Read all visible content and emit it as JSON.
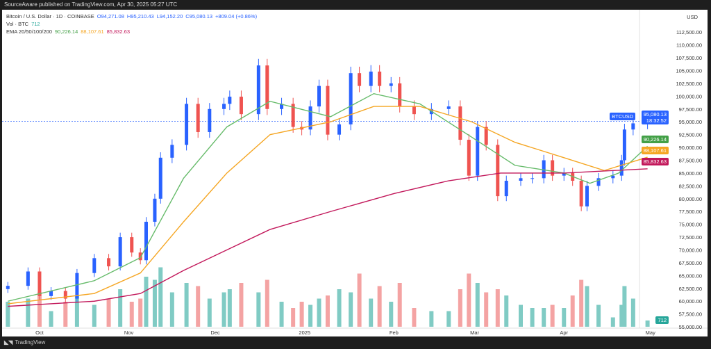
{
  "top_note": "SourceAware published on TradingView.com, Apr 30, 2025 05:27 UTC",
  "footer_brand": "TradingView",
  "legend": {
    "symbol": "Bitcoin / U.S. Dollar · 1D · COINBASE",
    "open": "O94,271.08",
    "high": "H95,210.43",
    "low": "L94,152.20",
    "close": "C95,080.13",
    "change": "+809.04 (+0.86%)",
    "vol_label": "Vol · BTC",
    "vol_value": "712",
    "ema_label": "EMA 20/50/100/200",
    "ema20": "90,226.14",
    "ema50": "88,107.61",
    "ema200": "85,832.63"
  },
  "axis": {
    "currency": "USD",
    "symbol_tag": "BTCUSD",
    "price_tag": "95,080.13",
    "countdown": "18:32:52",
    "vol_tag": "712"
  },
  "colors": {
    "up": "#2962ff",
    "down": "#ef5350",
    "vol_up": "#80cbc4",
    "vol_down": "#f4a3a3",
    "ema20": "#66bb6a",
    "ema50": "#f5a623",
    "ema200": "#c2185b"
  },
  "chart_data": {
    "type": "candlestick",
    "title": "Bitcoin / U.S. Dollar · 1D · COINBASE",
    "ylim": [
      55000,
      113750
    ],
    "yticks": [
      112500,
      110000,
      107500,
      105000,
      102500,
      100000,
      97500,
      95000,
      92500,
      90000,
      87500,
      85000,
      82500,
      80000,
      77500,
      75000,
      72500,
      70000,
      67500,
      65000,
      62500,
      60000,
      57500,
      55000
    ],
    "xticks": [
      {
        "label": "Oct",
        "date": "2024-10-01"
      },
      {
        "label": "Nov",
        "date": "2024-11-01"
      },
      {
        "label": "Dec",
        "date": "2024-12-01"
      },
      {
        "label": "2025",
        "date": "2025-01-01"
      },
      {
        "label": "Feb",
        "date": "2025-02-01"
      },
      {
        "label": "Mar",
        "date": "2025-03-01"
      },
      {
        "label": "Apr",
        "date": "2025-04-01"
      },
      {
        "label": "May",
        "date": "2025-05-01"
      }
    ],
    "xrange": [
      "2024-09-18",
      "2025-05-09"
    ],
    "closes": [
      [
        "2024-09-20",
        63000,
        40
      ],
      [
        "2024-09-27",
        65800,
        45
      ],
      [
        "2024-10-01",
        61000,
        55
      ],
      [
        "2024-10-05",
        62000,
        25
      ],
      [
        "2024-10-10",
        60500,
        40
      ],
      [
        "2024-10-14",
        65500,
        50
      ],
      [
        "2024-10-20",
        68400,
        35
      ],
      [
        "2024-10-25",
        66800,
        45
      ],
      [
        "2024-10-29",
        72500,
        60
      ],
      [
        "2024-11-02",
        69500,
        40
      ],
      [
        "2024-11-05",
        68000,
        45
      ],
      [
        "2024-11-07",
        75500,
        80
      ],
      [
        "2024-11-10",
        80000,
        75
      ],
      [
        "2024-11-12",
        88000,
        95
      ],
      [
        "2024-11-16",
        90500,
        55
      ],
      [
        "2024-11-21",
        98500,
        70
      ],
      [
        "2024-11-25",
        93000,
        65
      ],
      [
        "2024-11-29",
        97500,
        45
      ],
      [
        "2024-12-04",
        98500,
        55
      ],
      [
        "2024-12-06",
        99900,
        60
      ],
      [
        "2024-12-10",
        96500,
        70
      ],
      [
        "2024-12-16",
        106000,
        55
      ],
      [
        "2024-12-19",
        97500,
        75
      ],
      [
        "2024-12-24",
        98500,
        40
      ],
      [
        "2024-12-28",
        94000,
        30
      ],
      [
        "2024-12-31",
        93500,
        40
      ],
      [
        "2025-01-03",
        98000,
        35
      ],
      [
        "2025-01-06",
        102000,
        45
      ],
      [
        "2025-01-09",
        92500,
        50
      ],
      [
        "2025-01-13",
        94500,
        60
      ],
      [
        "2025-01-17",
        104500,
        55
      ],
      [
        "2025-01-20",
        102000,
        85
      ],
      [
        "2025-01-24",
        104800,
        45
      ],
      [
        "2025-01-27",
        102000,
        65
      ],
      [
        "2025-01-31",
        102500,
        40
      ],
      [
        "2025-02-03",
        98000,
        70
      ],
      [
        "2025-02-08",
        96500,
        30
      ],
      [
        "2025-02-14",
        97500,
        25
      ],
      [
        "2025-02-20",
        98000,
        25
      ],
      [
        "2025-02-24",
        91500,
        60
      ],
      [
        "2025-02-27",
        84500,
        85
      ],
      [
        "2025-03-02",
        94000,
        70
      ],
      [
        "2025-03-05",
        90500,
        55
      ],
      [
        "2025-03-09",
        80500,
        60
      ],
      [
        "2025-03-12",
        83500,
        50
      ],
      [
        "2025-03-17",
        84000,
        35
      ],
      [
        "2025-03-21",
        84000,
        30
      ],
      [
        "2025-03-25",
        87500,
        30
      ],
      [
        "2025-03-28",
        84500,
        35
      ],
      [
        "2025-04-01",
        85000,
        30
      ],
      [
        "2025-04-04",
        83500,
        50
      ],
      [
        "2025-04-07",
        78500,
        75
      ],
      [
        "2025-04-09",
        82500,
        65
      ],
      [
        "2025-04-13",
        84000,
        35
      ],
      [
        "2025-04-18",
        84500,
        15
      ],
      [
        "2025-04-21",
        87500,
        35
      ],
      [
        "2025-04-22",
        93500,
        65
      ],
      [
        "2025-04-25",
        94700,
        45
      ],
      [
        "2025-04-30",
        95080,
        10
      ]
    ],
    "series": [
      {
        "name": "EMA 20",
        "points": [
          [
            "2024-09-20",
            60000
          ],
          [
            "2024-10-20",
            64000
          ],
          [
            "2024-11-05",
            68500
          ],
          [
            "2024-11-20",
            84000
          ],
          [
            "2024-12-05",
            94000
          ],
          [
            "2024-12-20",
            99000
          ],
          [
            "2025-01-10",
            96000
          ],
          [
            "2025-01-25",
            100500
          ],
          [
            "2025-02-10",
            98500
          ],
          [
            "2025-02-28",
            92000
          ],
          [
            "2025-03-15",
            86500
          ],
          [
            "2025-04-01",
            85000
          ],
          [
            "2025-04-10",
            83000
          ],
          [
            "2025-04-20",
            85000
          ],
          [
            "2025-04-30",
            90226
          ]
        ]
      },
      {
        "name": "EMA 50",
        "points": [
          [
            "2024-09-20",
            59500
          ],
          [
            "2024-10-20",
            61500
          ],
          [
            "2024-11-05",
            65500
          ],
          [
            "2024-11-20",
            75500
          ],
          [
            "2024-12-05",
            85000
          ],
          [
            "2024-12-20",
            92500
          ],
          [
            "2025-01-10",
            95000
          ],
          [
            "2025-01-25",
            98000
          ],
          [
            "2025-02-10",
            98000
          ],
          [
            "2025-02-28",
            95000
          ],
          [
            "2025-03-15",
            91000
          ],
          [
            "2025-04-01",
            88000
          ],
          [
            "2025-04-15",
            85500
          ],
          [
            "2025-04-30",
            88107
          ]
        ]
      },
      {
        "name": "EMA 200",
        "points": [
          [
            "2024-09-20",
            59000
          ],
          [
            "2024-10-20",
            60000
          ],
          [
            "2024-11-05",
            61500
          ],
          [
            "2024-11-20",
            66000
          ],
          [
            "2024-12-05",
            70000
          ],
          [
            "2024-12-20",
            74000
          ],
          [
            "2025-01-10",
            77500
          ],
          [
            "2025-02-01",
            81000
          ],
          [
            "2025-02-20",
            83500
          ],
          [
            "2025-03-10",
            85000
          ],
          [
            "2025-04-01",
            85000
          ],
          [
            "2025-04-30",
            85832
          ]
        ]
      }
    ]
  }
}
